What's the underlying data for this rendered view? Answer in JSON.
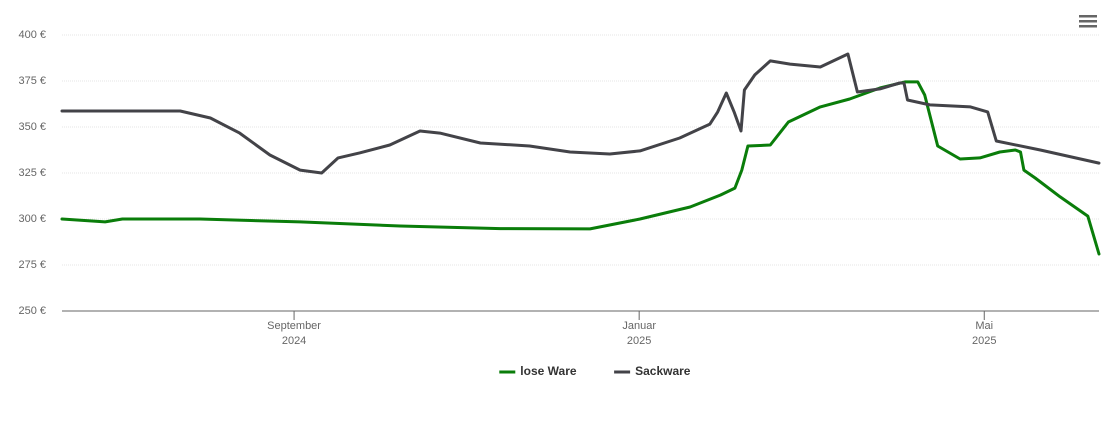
{
  "chart_data": {
    "type": "line",
    "xlim": [
      5.31,
      17.33
    ],
    "xticks": [
      {
        "value": 8,
        "label": [
          "September",
          "2024"
        ]
      },
      {
        "value": 12,
        "label": [
          "Januar",
          "2025"
        ]
      },
      {
        "value": 16,
        "label": [
          "Mai",
          "2025"
        ]
      }
    ],
    "ylim": [
      250,
      400
    ],
    "yticks": [
      {
        "value": 250,
        "label": "250 €"
      },
      {
        "value": 275,
        "label": "275 €"
      },
      {
        "value": 300,
        "label": "300 €"
      },
      {
        "value": 325,
        "label": "325 €"
      },
      {
        "value": 350,
        "label": "350 €"
      },
      {
        "value": 375,
        "label": "375 €"
      },
      {
        "value": 400,
        "label": "400 €"
      }
    ],
    "grid": true,
    "legend": "bottom",
    "series": [
      {
        "name": "lose Ware",
        "color": "#0a7d0a",
        "x": [
          5.31,
          5.81,
          6.01,
          6.91,
          8.07,
          9.23,
          10.39,
          11.43,
          12.01,
          12.59,
          12.94,
          13.11,
          13.19,
          13.26,
          13.52,
          13.73,
          14.1,
          14.44,
          14.79,
          15.08,
          15.23,
          15.31,
          15.46,
          15.72,
          15.95,
          16.18,
          16.36,
          16.42,
          16.46,
          16.59,
          16.88,
          17.2,
          17.33
        ],
        "values": [
          300,
          298.4,
          300,
          300,
          298.4,
          296.2,
          294.8,
          294.6,
          300,
          306.5,
          313,
          316.8,
          326.6,
          339.7,
          340.2,
          352.7,
          360.9,
          365.2,
          371.2,
          374.5,
          374.5,
          367.4,
          339.7,
          332.6,
          333.2,
          336.4,
          337.5,
          336.4,
          326.6,
          322.3,
          312,
          301.6,
          281
        ]
      },
      {
        "name": "Sackware",
        "color": "#434348",
        "x": [
          5.31,
          6.68,
          7.03,
          7.37,
          7.72,
          8.07,
          8.32,
          8.51,
          8.76,
          9.11,
          9.46,
          9.69,
          10.16,
          10.73,
          11.2,
          11.66,
          12.01,
          12.47,
          12.82,
          12.91,
          13.01,
          13.1,
          13.18,
          13.22,
          13.34,
          13.52,
          13.75,
          14.1,
          14.42,
          14.53,
          14.79,
          15.02,
          15.07,
          15.11,
          15.37,
          15.84,
          16.04,
          16.14,
          16.65,
          17.33
        ],
        "values": [
          358.7,
          358.7,
          354.9,
          346.7,
          334.8,
          326.6,
          325,
          333.2,
          335.9,
          340.2,
          347.8,
          346.7,
          341.3,
          339.7,
          336.4,
          335.3,
          337,
          344,
          351.6,
          358.2,
          368.5,
          358.2,
          347.8,
          370.1,
          378.3,
          385.9,
          384.2,
          382.6,
          389.7,
          369,
          370.7,
          373.9,
          373.9,
          364.7,
          362,
          360.9,
          358.2,
          342.4,
          337.5,
          330.4
        ]
      }
    ]
  }
}
